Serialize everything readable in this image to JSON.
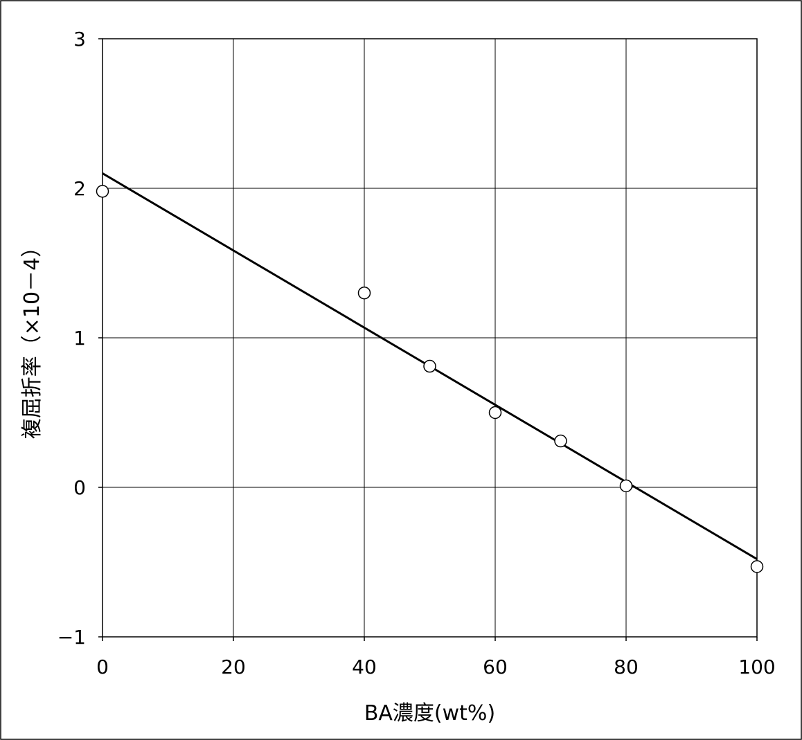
{
  "chart_data": {
    "type": "scatter",
    "title": "",
    "xlabel": "BA濃度(wt%)",
    "ylabel": "複屈折率（×10－4）",
    "xlim": [
      0,
      100
    ],
    "ylim": [
      -1,
      3
    ],
    "xticks": [
      "0",
      "20",
      "40",
      "60",
      "80",
      "100"
    ],
    "yticks": [
      "3",
      "2",
      "1",
      "0",
      "−1"
    ],
    "grid": true,
    "legend": "none",
    "series": [
      {
        "marker": "open-circle",
        "x": [
          0,
          40,
          50,
          60,
          70,
          80,
          100
        ],
        "y": [
          1.98,
          1.3,
          0.81,
          0.5,
          0.31,
          0.01,
          -0.53
        ]
      }
    ],
    "trendline": {
      "x": [
        0,
        100
      ],
      "y": [
        2.1,
        -0.48
      ]
    },
    "colors": {
      "axis": "#000000",
      "grid": "#000000",
      "marker_stroke": "#000000",
      "marker_fill": "#ffffff",
      "trendline": "#000000"
    }
  }
}
